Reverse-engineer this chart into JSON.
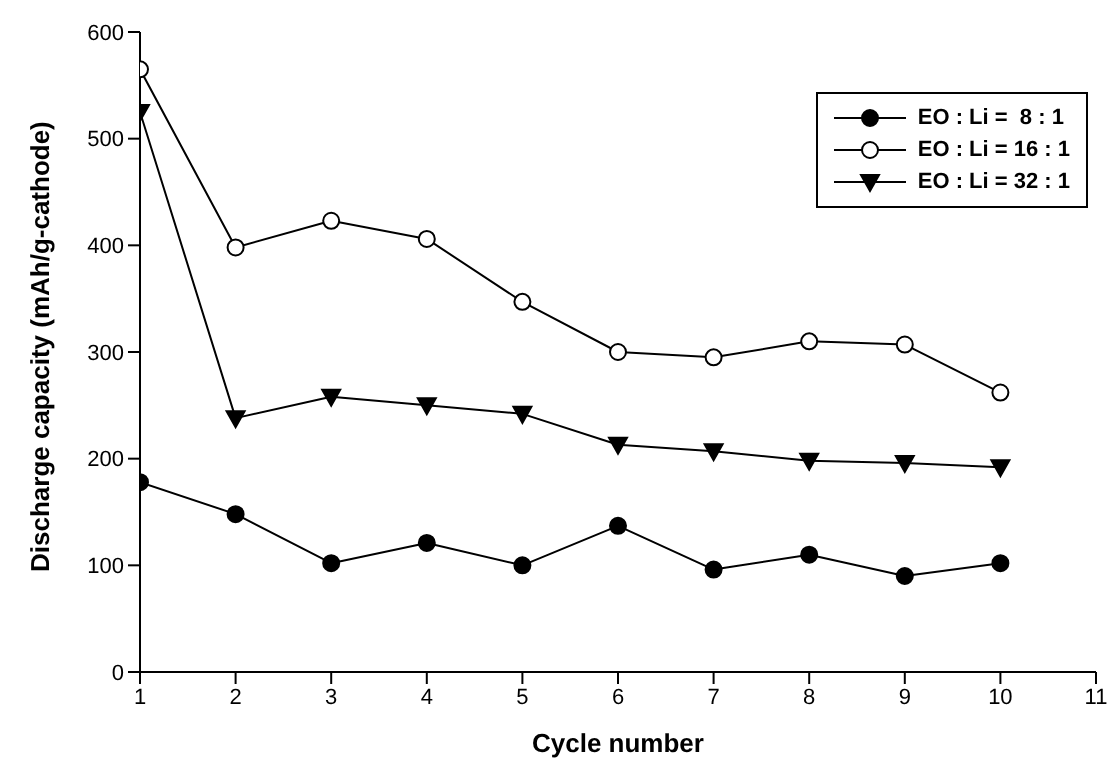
{
  "chart_data": {
    "type": "line",
    "xlabel": "Cycle number",
    "ylabel": "Discharge capacity (mAh/g-cathode)",
    "x": [
      1,
      2,
      3,
      4,
      5,
      6,
      7,
      8,
      9,
      10
    ],
    "series": [
      {
        "name": "EO : Li =  8 : 1",
        "color": "#000000",
        "marker": "circle",
        "values": [
          178,
          148,
          102,
          121,
          100,
          137,
          96,
          110,
          90,
          102
        ]
      },
      {
        "name": "EO : Li = 16 : 1",
        "color": "#000000",
        "marker": "circle",
        "values": [
          565,
          398,
          423,
          406,
          347,
          300,
          295,
          310,
          307,
          262
        ]
      },
      {
        "name": "EO : Li = 32 : 1",
        "color": "#000000",
        "marker": "triangle",
        "values": [
          525,
          238,
          258,
          250,
          242,
          213,
          207,
          198,
          196,
          192
        ]
      }
    ],
    "xlim": [
      1,
      11
    ],
    "xticks": [
      1,
      2,
      3,
      4,
      5,
      6,
      7,
      8,
      9,
      10,
      11
    ],
    "ylim": [
      0,
      600
    ],
    "yticks": [
      0,
      100,
      200,
      300,
      400,
      500,
      600
    ],
    "grid": false,
    "legend": "top right",
    "line_style": "solid"
  }
}
